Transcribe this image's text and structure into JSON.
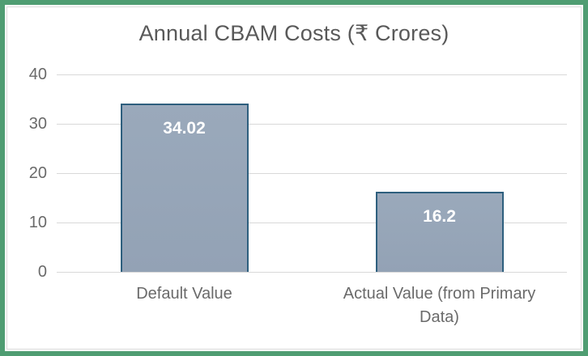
{
  "chart_data": {
    "type": "bar",
    "title": "Annual CBAM Costs (₹ Crores)",
    "categories": [
      "Default Value",
      "Actual Value (from Primary Data)"
    ],
    "values": [
      34.02,
      16.2
    ],
    "data_labels": [
      "34.02",
      "16.2"
    ],
    "xlabel": "",
    "ylabel": "",
    "ylim": [
      0,
      40
    ],
    "yticks": [
      "40",
      "30",
      "20",
      "10",
      "0"
    ],
    "grid": "horizontal",
    "legend_position": "none",
    "colors": {
      "frame_border": "#4f9d72",
      "chart_border": "#dcdcdc",
      "gridline": "#d9d9d9",
      "bar_fill": "#96a5b7",
      "bar_border": "#2e5f7e",
      "data_label_text": "#ffffff",
      "title_text": "#595959",
      "axis_text": "#6a6a6a"
    }
  }
}
